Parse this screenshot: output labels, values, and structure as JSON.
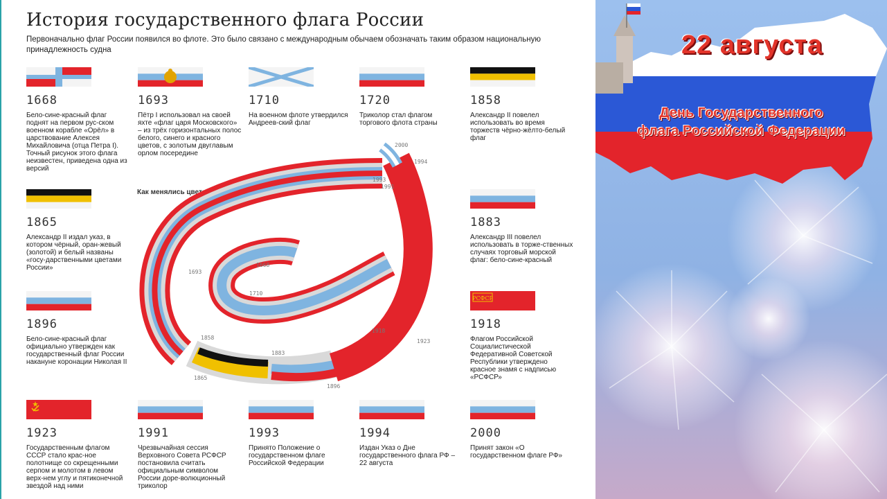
{
  "infographic": {
    "title": "История государственного флага России",
    "subtitle": "Первоначально флаг России появился во флоте. Это было связано с международным обычаем обозначать таким образом национальную принадлежность судна",
    "spiral_title": "Как менялись цвета флага",
    "spiral_years": [
      "1668",
      "1693",
      "1710",
      "1858",
      "1865",
      "1883",
      "1896",
      "1918",
      "1923",
      "1991",
      "1993",
      "1994",
      "2000"
    ],
    "items": [
      {
        "year": "1668",
        "flag": "blue-cross",
        "text": "Бело-сине-красный флаг поднят на первом рус-ском военном корабле «Орёл» в царствование Алексея Михайловича (отца Петра I). Точный рисунок этого флага неизвестен, приведена одна из версий"
      },
      {
        "year": "1693",
        "flag": "tricolor-eagle",
        "text": "Пётр I использовал на своей яхте «флаг царя Московского» – из трёх горизонтальных полос белого, синего и красного цветов, с золотым двуглавым орлом посередине"
      },
      {
        "year": "1710",
        "flag": "saint-andrew",
        "text": "На военном флоте утвердился Андреев-ский флаг"
      },
      {
        "year": "1720",
        "flag": "tricolor",
        "text": "Триколор стал флагом торгового флота страны"
      },
      {
        "year": "1858",
        "flag": "imperial",
        "text": "Александр II повелел использовать во время торжеств чёрно-жёлто-белый флаг"
      },
      {
        "year": "1865",
        "flag": "imperial",
        "text": "Александр II издал указ, в котором чёрный, оран-жевый (золотой) и белый названы «госу-дарственными цветами России»"
      },
      {
        "year": "1883",
        "flag": "tricolor",
        "text": "Александр III повелел использовать в торже-ственных случаях торговый морской флаг: бело-сине-красный"
      },
      {
        "year": "1896",
        "flag": "tricolor",
        "text": "Бело-сине-красный флаг официально утвержден как государственный флаг России накануне коронации Николая II"
      },
      {
        "year": "1918",
        "flag": "rsfsr",
        "text": "Флагом Российской Социалистической Федеративной Советской Республики утверждено красное знамя с надписью «РСФСР»"
      },
      {
        "year": "1923",
        "flag": "ussr",
        "text": "Государственным флагом СССР стало крас-ное полотнище со скрещенными серпом и молотом в левом верх-нем углу и пятиконечной звездой над ними"
      },
      {
        "year": "1991",
        "flag": "tricolor",
        "text": "Чрезвычайная сессия Верховного Совета РСФСР постановила считать официальным символом России доре-волюционный триколор"
      },
      {
        "year": "1993",
        "flag": "tricolor",
        "text": "Принято Положение о государственном флаге Российской Федерации"
      },
      {
        "year": "1994",
        "flag": "tricolor",
        "text": "Издан Указ о Дне государственного флага РФ – 22 августа"
      },
      {
        "year": "2000",
        "flag": "tricolor",
        "text": "Принят закон «О государственном флаге РФ»"
      }
    ]
  },
  "banner": {
    "date": "22 августа",
    "holiday_line1": "День Государственного",
    "holiday_line2": "флага Российской Федерации"
  },
  "colors": {
    "white": "#ffffff",
    "blue": "#7fb4e0",
    "red": "#e3242b",
    "black": "#111111",
    "gold": "#f0c000",
    "gray": "#d9d9d9",
    "sky": "#8eb6e6",
    "accent": "#2aa3a8"
  }
}
